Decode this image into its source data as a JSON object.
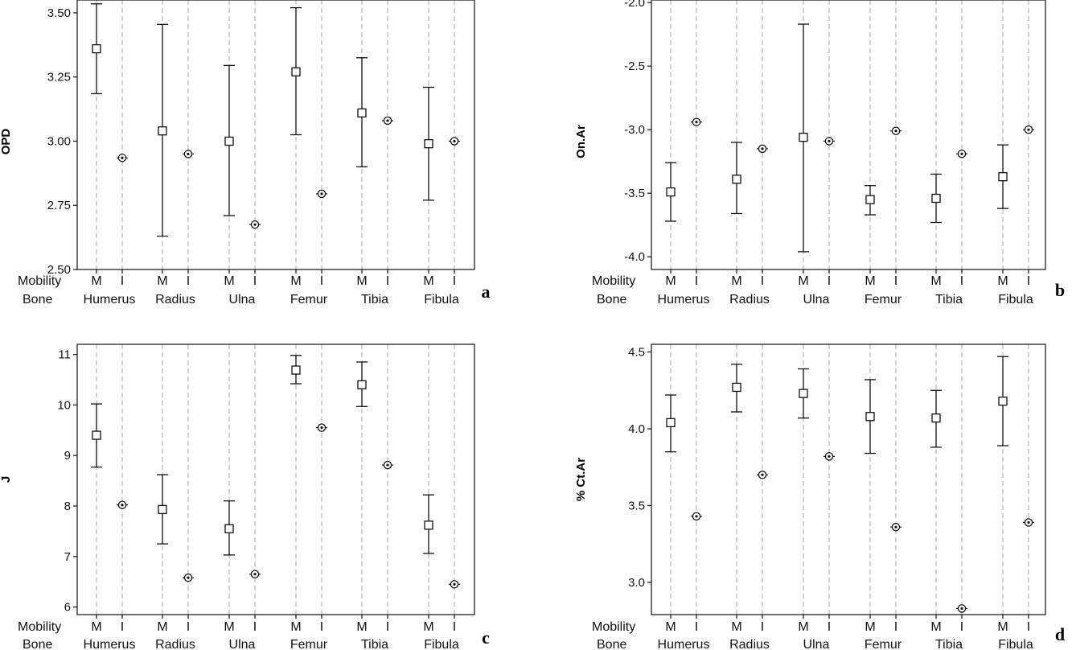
{
  "row_labels": {
    "mobility": "Mobility",
    "bone": "Bone"
  },
  "mobility_labels": {
    "M": "M",
    "I": "I"
  },
  "bones": [
    "Humerus",
    "Radius",
    "Ulna",
    "Femur",
    "Tibia",
    "Fibula"
  ],
  "colors": {
    "axis": "#111111",
    "gridline": "#a6a6a6",
    "marker": "#111111"
  },
  "chart_data": [
    {
      "type": "interval",
      "letter": "a",
      "ylabel": "OPD",
      "ylim": [
        2.5,
        3.55
      ],
      "yticks": [
        2.5,
        2.75,
        3.0,
        3.25,
        3.5
      ],
      "ytick_labels": [
        "2.50",
        "2.75",
        "3.00",
        "3.25",
        "3.50"
      ],
      "categories": [
        "Humerus",
        "Radius",
        "Ulna",
        "Femur",
        "Tibia",
        "Fibula"
      ],
      "series": [
        {
          "mobility": "M",
          "mean": [
            3.36,
            3.04,
            3.0,
            3.27,
            3.11,
            2.99
          ],
          "lower": [
            3.185,
            2.63,
            2.71,
            3.025,
            2.9,
            2.77
          ],
          "upper": [
            3.535,
            3.455,
            3.295,
            3.52,
            3.325,
            3.21
          ]
        },
        {
          "mobility": "I",
          "mean": [
            2.935,
            2.95,
            2.675,
            2.795,
            3.08,
            3.0
          ]
        }
      ]
    },
    {
      "type": "interval",
      "letter": "b",
      "ylabel": "On.Ar",
      "ylim": [
        -4.1,
        -1.98
      ],
      "yticks": [
        -4.0,
        -3.5,
        -3.0,
        -2.5,
        -2.0
      ],
      "ytick_labels": [
        "-4.0",
        "-3.5",
        "-3.0",
        "-2.5",
        "-2.0"
      ],
      "categories": [
        "Humerus",
        "Radius",
        "Ulna",
        "Femur",
        "Tibia",
        "Fibula"
      ],
      "series": [
        {
          "mobility": "M",
          "mean": [
            -3.49,
            -3.39,
            -3.06,
            -3.55,
            -3.54,
            -3.37
          ],
          "lower": [
            -3.72,
            -3.66,
            -3.96,
            -3.67,
            -3.73,
            -3.62
          ],
          "upper": [
            -3.26,
            -3.1,
            -2.17,
            -3.44,
            -3.35,
            -3.12
          ]
        },
        {
          "mobility": "I",
          "mean": [
            -2.94,
            -3.15,
            -3.09,
            -3.01,
            -3.19,
            -3.0
          ]
        }
      ]
    },
    {
      "type": "interval",
      "letter": "c",
      "ylabel": "J",
      "ylim": [
        5.85,
        11.2
      ],
      "yticks": [
        6,
        7,
        8,
        9,
        10,
        11
      ],
      "ytick_labels": [
        "6",
        "7",
        "8",
        "9",
        "10",
        "11"
      ],
      "categories": [
        "Humerus",
        "Radius",
        "Ulna",
        "Femur",
        "Tibia",
        "Fibula"
      ],
      "series": [
        {
          "mobility": "M",
          "mean": [
            9.4,
            7.93,
            7.55,
            10.69,
            10.4,
            7.62
          ],
          "lower": [
            8.77,
            7.25,
            7.03,
            10.42,
            9.97,
            7.06
          ],
          "upper": [
            10.02,
            8.62,
            8.1,
            10.98,
            10.85,
            8.22
          ]
        },
        {
          "mobility": "I",
          "mean": [
            8.02,
            6.58,
            6.65,
            9.55,
            8.81,
            6.45
          ]
        }
      ]
    },
    {
      "type": "interval",
      "letter": "d",
      "ylabel": "% Ct.Ar",
      "ylim": [
        2.79,
        4.55
      ],
      "yticks": [
        3.0,
        3.5,
        4.0,
        4.5
      ],
      "ytick_labels": [
        "3.0",
        "3.5",
        "4.0",
        "4.5"
      ],
      "categories": [
        "Humerus",
        "Radius",
        "Ulna",
        "Femur",
        "Tibia",
        "Fibula"
      ],
      "series": [
        {
          "mobility": "M",
          "mean": [
            4.04,
            4.27,
            4.23,
            4.08,
            4.07,
            4.18
          ],
          "lower": [
            3.85,
            4.11,
            4.07,
            3.84,
            3.88,
            3.89
          ],
          "upper": [
            4.22,
            4.42,
            4.39,
            4.32,
            4.25,
            4.47
          ]
        },
        {
          "mobility": "I",
          "mean": [
            3.43,
            3.7,
            3.82,
            3.36,
            2.83,
            3.39
          ]
        }
      ]
    }
  ]
}
